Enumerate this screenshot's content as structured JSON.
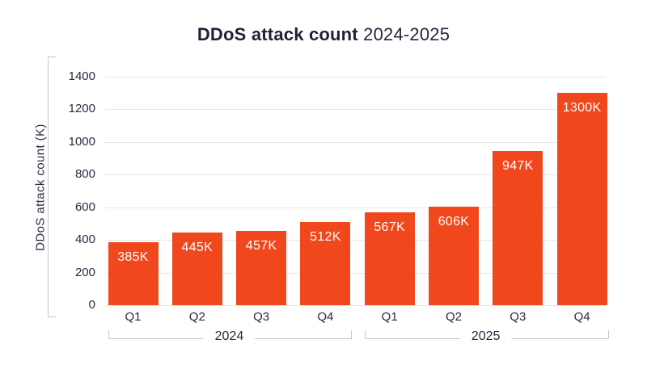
{
  "title": {
    "bold": "DDoS attack count",
    "regular": "2024-2025"
  },
  "colors": {
    "bar": "#f0481c",
    "bar_label_text": "#ffffff",
    "title_text": "#221f38",
    "axis_text": "#2b2840",
    "gridline": "#e6e6e9",
    "axis_bracket": "#c6c6ca",
    "background": "#ffffff"
  },
  "chart_data": {
    "type": "bar",
    "title": "DDoS attack count 2024-2025",
    "xlabel": "",
    "ylabel": "DDoS attack count (K)",
    "categories": [
      "Q1",
      "Q2",
      "Q3",
      "Q4",
      "Q1",
      "Q2",
      "Q3",
      "Q4"
    ],
    "values": [
      385,
      445,
      457,
      512,
      567,
      606,
      947,
      1300
    ],
    "bar_labels": [
      "385K",
      "445K",
      "457K",
      "512K",
      "567K",
      "606K",
      "947K",
      "1300K"
    ],
    "groups": [
      {
        "label": "2024",
        "from": 0,
        "to": 3
      },
      {
        "label": "2025",
        "from": 4,
        "to": 7
      }
    ],
    "yticks": [
      0,
      200,
      400,
      600,
      800,
      1000,
      1200,
      1400
    ],
    "ylim": [
      0,
      1400
    ],
    "grid": true,
    "legend": false
  }
}
